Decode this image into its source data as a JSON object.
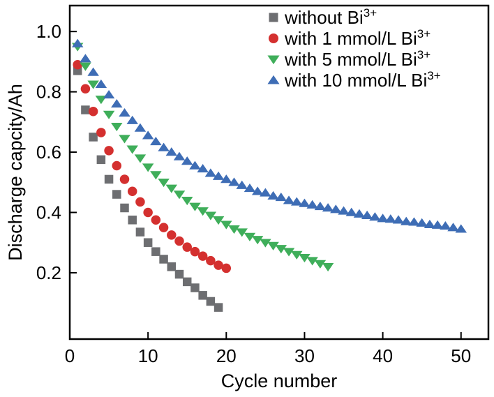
{
  "chart_data": {
    "type": "scatter",
    "title": "",
    "xlabel": "Cycle number",
    "ylabel": "Discharge capcity/Ah",
    "xlim": [
      0,
      53.5
    ],
    "ylim": [
      -0.02,
      1.086
    ],
    "x_ticks": [
      0,
      10,
      20,
      30,
      40,
      50
    ],
    "x_tick_labels": [
      "0",
      "10",
      "20",
      "30",
      "40",
      "50"
    ],
    "y_ticks": [
      0.2,
      0.4,
      0.6,
      0.8,
      1.0
    ],
    "y_tick_labels": [
      "0.2",
      "0.4",
      "0.6",
      "0.8",
      "1.0"
    ],
    "grid": false,
    "legend_position": "top-right-inside",
    "frame_color": "#000000",
    "series": [
      {
        "id": "without-bi",
        "name": "without Bi³⁺",
        "label_main": "without Bi",
        "label_sup": "3+",
        "marker": "square",
        "color": "#6d6e71",
        "x": [
          1,
          2,
          3,
          4,
          5,
          6,
          7,
          8,
          9,
          10,
          11,
          12,
          13,
          14,
          15,
          16,
          17,
          18,
          19
        ],
        "y": [
          0.87,
          0.74,
          0.65,
          0.575,
          0.51,
          0.46,
          0.415,
          0.375,
          0.335,
          0.3,
          0.27,
          0.245,
          0.22,
          0.195,
          0.17,
          0.15,
          0.125,
          0.105,
          0.085
        ]
      },
      {
        "id": "with-1mmol",
        "name": "with 1 mmol/L Bi³⁺",
        "label_main": "with 1 mmol/L Bi",
        "label_sup": "3+",
        "marker": "circle",
        "color": "#d4302f",
        "x": [
          1,
          2,
          3,
          4,
          5,
          6,
          7,
          8,
          9,
          10,
          11,
          12,
          13,
          14,
          15,
          16,
          17,
          18,
          19,
          20
        ],
        "y": [
          0.89,
          0.81,
          0.735,
          0.665,
          0.605,
          0.555,
          0.51,
          0.47,
          0.435,
          0.4,
          0.375,
          0.35,
          0.325,
          0.305,
          0.285,
          0.27,
          0.255,
          0.24,
          0.225,
          0.215
        ]
      },
      {
        "id": "with-5mmol",
        "name": "with 5 mmol/L Bi³⁺",
        "label_main": "with 5 mmol/L Bi",
        "label_sup": "3+",
        "marker": "triangle-down",
        "color": "#3fae5a",
        "x": [
          1,
          2,
          3,
          4,
          5,
          6,
          7,
          8,
          9,
          10,
          11,
          12,
          13,
          14,
          15,
          16,
          17,
          18,
          19,
          20,
          21,
          22,
          23,
          24,
          25,
          26,
          27,
          28,
          29,
          30,
          31,
          32,
          33
        ],
        "y": [
          0.95,
          0.885,
          0.825,
          0.775,
          0.725,
          0.685,
          0.645,
          0.61,
          0.58,
          0.55,
          0.525,
          0.5,
          0.48,
          0.46,
          0.44,
          0.42,
          0.405,
          0.39,
          0.375,
          0.36,
          0.345,
          0.335,
          0.32,
          0.31,
          0.3,
          0.29,
          0.28,
          0.27,
          0.26,
          0.25,
          0.24,
          0.23,
          0.22
        ]
      },
      {
        "id": "with-10mmol",
        "name": "with 10 mmol/L Bi³⁺",
        "label_main": "with 10 mmol/L Bi",
        "label_sup": "3+",
        "marker": "triangle-up",
        "color": "#3e6db5",
        "x": [
          1,
          2,
          3,
          4,
          5,
          6,
          7,
          8,
          9,
          10,
          11,
          12,
          13,
          14,
          15,
          16,
          17,
          18,
          19,
          20,
          21,
          22,
          23,
          24,
          25,
          26,
          27,
          28,
          29,
          30,
          31,
          32,
          33,
          34,
          35,
          36,
          37,
          38,
          39,
          40,
          41,
          42,
          43,
          44,
          45,
          46,
          47,
          48,
          49,
          50
        ],
        "y": [
          0.96,
          0.91,
          0.865,
          0.825,
          0.79,
          0.76,
          0.73,
          0.705,
          0.68,
          0.655,
          0.635,
          0.615,
          0.6,
          0.585,
          0.57,
          0.555,
          0.545,
          0.53,
          0.52,
          0.51,
          0.5,
          0.49,
          0.48,
          0.47,
          0.465,
          0.455,
          0.45,
          0.44,
          0.435,
          0.43,
          0.425,
          0.42,
          0.415,
          0.41,
          0.405,
          0.4,
          0.395,
          0.39,
          0.385,
          0.38,
          0.378,
          0.375,
          0.37,
          0.368,
          0.365,
          0.36,
          0.358,
          0.355,
          0.35,
          0.345
        ]
      }
    ]
  }
}
